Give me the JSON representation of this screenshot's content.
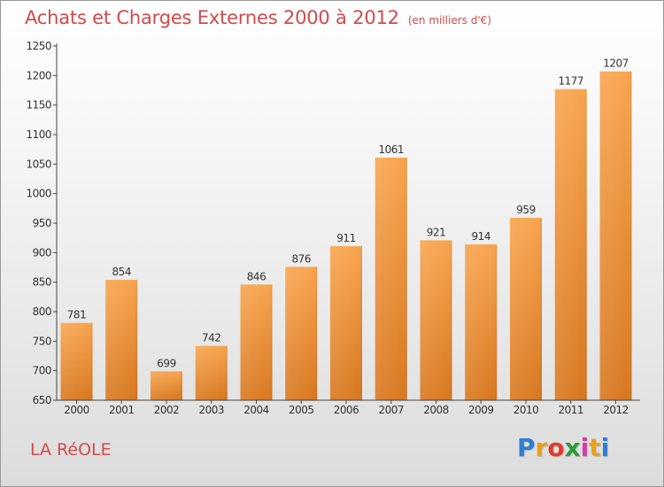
{
  "header": {
    "title": "Achats et Charges Externes 2000 à 2012",
    "unit": "(en milliers d'€)"
  },
  "commune": "LA RéOLE",
  "logo": {
    "text": "Proxiti",
    "letters": [
      "P",
      "r",
      "o",
      "x",
      "i",
      "t",
      "i"
    ],
    "colors": [
      "#2d7fd0",
      "#e8a21a",
      "#e03a2f",
      "#2e9a3a",
      "#d23fa0",
      "#e8a21a",
      "#2d7fd0"
    ]
  },
  "colors": {
    "bar_light": "#f8a550",
    "bar_dark": "#d87820",
    "title": "#d24a4a",
    "axis": "#333333"
  },
  "chart_data": {
    "type": "bar",
    "title": "Achats et Charges Externes 2000 à 2012",
    "subtitle": "(en milliers d'€)",
    "xlabel": "",
    "ylabel": "",
    "categories": [
      "2000",
      "2001",
      "2002",
      "2003",
      "2004",
      "2005",
      "2006",
      "2007",
      "2008",
      "2009",
      "2010",
      "2011",
      "2012"
    ],
    "values": [
      781,
      854,
      699,
      742,
      846,
      876,
      911,
      1061,
      921,
      914,
      959,
      1177,
      1207
    ],
    "ylim": [
      650,
      1250
    ],
    "yticks": [
      650,
      700,
      750,
      800,
      850,
      900,
      950,
      1000,
      1050,
      1100,
      1150,
      1200,
      1250
    ],
    "grid": false,
    "legend": "none"
  }
}
